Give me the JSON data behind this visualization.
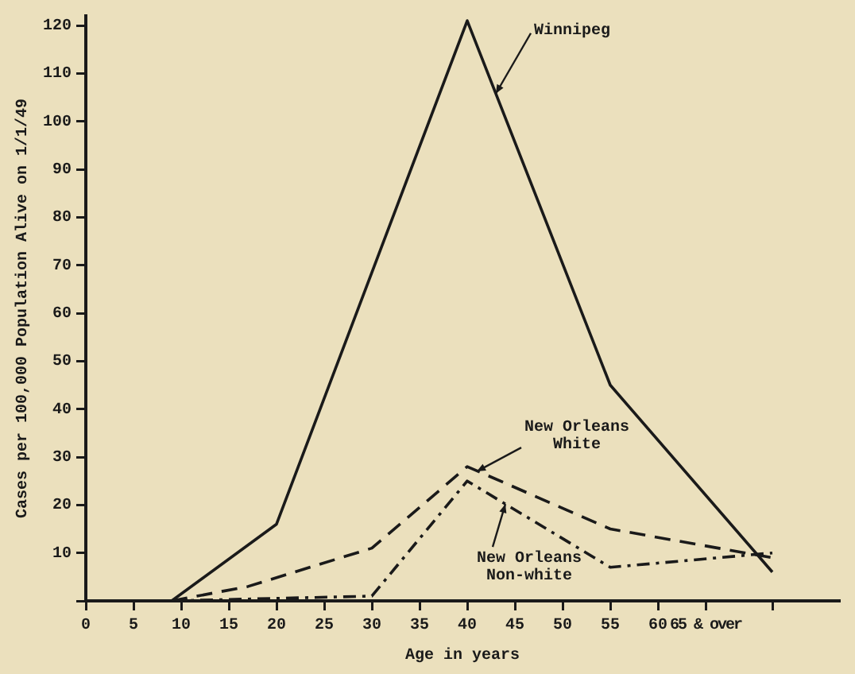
{
  "chart_data": {
    "type": "line",
    "xlabel": "Age in years",
    "ylabel": "Cases per 100,000 Population Alive on 1/1/49",
    "xlim": [
      0,
      79
    ],
    "ylim": [
      0,
      122
    ],
    "xticks": [
      0,
      5,
      10,
      15,
      20,
      25,
      30,
      35,
      40,
      45,
      50,
      55,
      60,
      {
        "value": 65,
        "label": "65 & over"
      },
      {
        "value": 72,
        "label": null
      }
    ],
    "yticks": [
      {
        "value": 0,
        "label": null
      },
      10,
      20,
      30,
      40,
      50,
      60,
      70,
      80,
      90,
      100,
      110,
      120
    ],
    "grid": false,
    "legend": false,
    "marker": "none",
    "series": [
      {
        "color": "#1a1a1a",
        "line_style": "solid",
        "x": [
          9,
          20,
          40,
          55,
          72
        ],
        "values": [
          0,
          16,
          121,
          45,
          6
        ]
      },
      {
        "color": "#1a1a1a",
        "line_style": "dashed",
        "x": [
          9,
          17,
          30,
          40,
          55,
          72
        ],
        "values": [
          0,
          3,
          11,
          28,
          15,
          9
        ]
      },
      {
        "color": "#1a1a1a",
        "line_style": "dashdot",
        "x": [
          9,
          30,
          40,
          55,
          72
        ],
        "values": [
          0,
          1,
          25,
          7,
          10
        ]
      }
    ],
    "annotations": [
      {
        "text": "Winnipeg",
        "x": 43,
        "y": 105.8
      },
      {
        "text": "New Orleans\nWhite",
        "x": 41,
        "y": 27
      },
      {
        "text": "New Orleans\nNon-white",
        "x": 44,
        "y": 20.2
      }
    ]
  }
}
